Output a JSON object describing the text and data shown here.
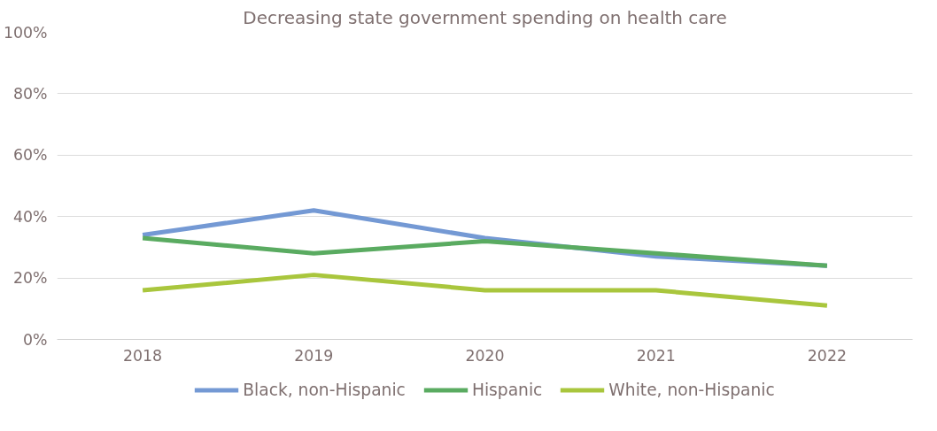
{
  "chart_data": {
    "type": "line",
    "title": "Decreasing state government spending on health care",
    "categories": [
      "2018",
      "2019",
      "2020",
      "2021",
      "2022"
    ],
    "series": [
      {
        "name": "Black, non-Hispanic",
        "color": "#7499d4",
        "values": [
          34,
          42,
          33,
          27,
          24
        ]
      },
      {
        "name": "Hispanic",
        "color": "#5aab61",
        "values": [
          33,
          28,
          32,
          28,
          24
        ]
      },
      {
        "name": "White, non-Hispanic",
        "color": "#a9c63d",
        "values": [
          16,
          21,
          16,
          16,
          11
        ]
      }
    ],
    "ylim": [
      0,
      100
    ],
    "yticks": [
      {
        "value": 0,
        "label": "0%"
      },
      {
        "value": 20,
        "label": "20%"
      },
      {
        "value": 40,
        "label": "40%"
      },
      {
        "value": 60,
        "label": "60%"
      },
      {
        "value": 80,
        "label": "80%"
      },
      {
        "value": 100,
        "label": "100%"
      }
    ],
    "grid": "y",
    "legend": "bottom",
    "marker": "none",
    "line_style": "solid"
  }
}
